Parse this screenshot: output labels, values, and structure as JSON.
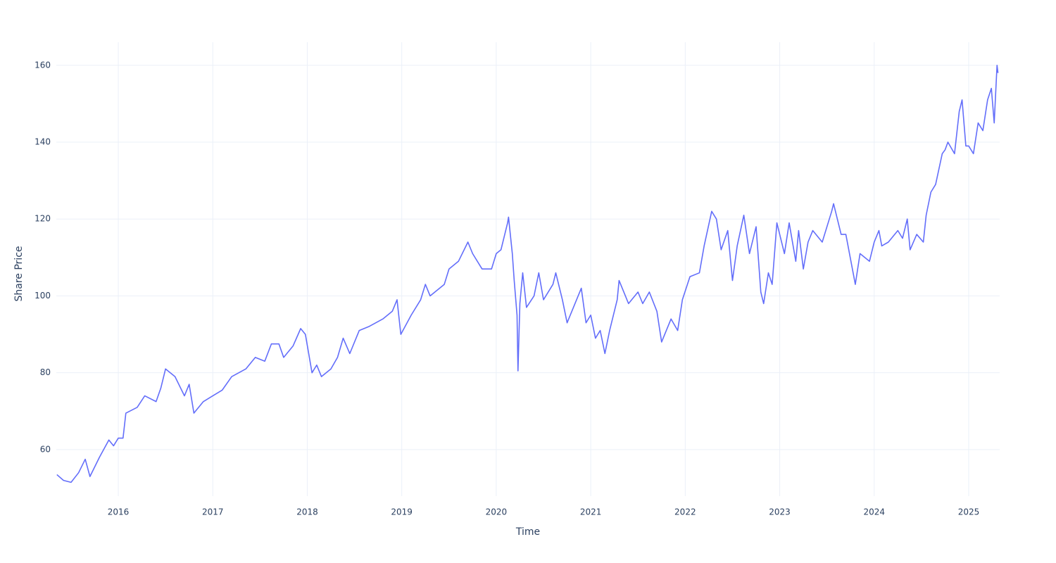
{
  "chart_data": {
    "type": "line",
    "x_label": "Time",
    "y_label": "Share Price",
    "xlim": [
      2015.344,
      2025.328
    ],
    "xticks": [
      2016,
      2017,
      2018,
      2019,
      2020,
      2021,
      2022,
      2023,
      2024,
      2025
    ],
    "ylim": [
      47.9,
      166.0
    ],
    "yticks": [
      60,
      80,
      100,
      120,
      140,
      160
    ],
    "grid": true,
    "series": [
      {
        "color": "#636efa",
        "x": [
          2015.35,
          2015.42,
          2015.5,
          2015.58,
          2015.65,
          2015.7,
          2015.8,
          2015.9,
          2015.95,
          2016.0,
          2016.05,
          2016.08,
          2016.2,
          2016.28,
          2016.4,
          2016.45,
          2016.5,
          2016.6,
          2016.7,
          2016.75,
          2016.8,
          2016.9,
          2017.0,
          2017.1,
          2017.2,
          2017.35,
          2017.45,
          2017.55,
          2017.62,
          2017.7,
          2017.75,
          2017.85,
          2017.93,
          2017.98,
          2018.05,
          2018.1,
          2018.15,
          2018.25,
          2018.32,
          2018.38,
          2018.45,
          2018.55,
          2018.65,
          2018.8,
          2018.9,
          2018.95,
          2018.99,
          2019.1,
          2019.2,
          2019.25,
          2019.3,
          2019.45,
          2019.5,
          2019.6,
          2019.7,
          2019.75,
          2019.85,
          2019.95,
          2020.0,
          2020.05,
          2020.12,
          2020.13,
          2020.17,
          2020.19,
          2020.22,
          2020.23,
          2020.25,
          2020.28,
          2020.32,
          2020.4,
          2020.45,
          2020.5,
          2020.6,
          2020.63,
          2020.7,
          2020.75,
          2020.8,
          2020.9,
          2020.95,
          2021.0,
          2021.05,
          2021.1,
          2021.15,
          2021.2,
          2021.28,
          2021.3,
          2021.4,
          2021.5,
          2021.55,
          2021.62,
          2021.7,
          2021.75,
          2021.85,
          2021.92,
          2021.97,
          2022.05,
          2022.15,
          2022.2,
          2022.28,
          2022.33,
          2022.38,
          2022.45,
          2022.5,
          2022.55,
          2022.62,
          2022.68,
          2022.75,
          2022.8,
          2022.83,
          2022.88,
          2022.92,
          2022.97,
          2023.05,
          2023.1,
          2023.17,
          2023.2,
          2023.25,
          2023.3,
          2023.35,
          2023.45,
          2023.55,
          2023.57,
          2023.65,
          2023.7,
          2023.8,
          2023.85,
          2023.95,
          2024.0,
          2024.05,
          2024.08,
          2024.15,
          2024.25,
          2024.3,
          2024.35,
          2024.38,
          2024.45,
          2024.52,
          2024.55,
          2024.6,
          2024.65,
          2024.72,
          2024.75,
          2024.78,
          2024.85,
          2024.9,
          2024.93,
          2024.97,
          2025.0,
          2025.05,
          2025.1,
          2025.15,
          2025.2,
          2025.24,
          2025.27,
          2025.3,
          2025.31
        ],
        "values": [
          53.5,
          52,
          51.5,
          54,
          57.5,
          53,
          58,
          62.5,
          61,
          63,
          63,
          69.5,
          71,
          74,
          72.5,
          76,
          81,
          79,
          74,
          77,
          69.5,
          72.5,
          74,
          75.5,
          79,
          81,
          84,
          83,
          87.5,
          87.5,
          84,
          87,
          91.5,
          90,
          80,
          82,
          79,
          81,
          84,
          89,
          85,
          91,
          92,
          94,
          96,
          99,
          90,
          95,
          99,
          103,
          100,
          103,
          107,
          109,
          114,
          111,
          107,
          107,
          111,
          112,
          119,
          120.5,
          111,
          104,
          95,
          80.5,
          98,
          106,
          97,
          100,
          106,
          99,
          103,
          106,
          99,
          93,
          96,
          102,
          93,
          95,
          89,
          91,
          85,
          91,
          99,
          104,
          98,
          101,
          98,
          101,
          96,
          88,
          94,
          91,
          99,
          105,
          106,
          113,
          122,
          120,
          112,
          117,
          104,
          113,
          121,
          111,
          118,
          101,
          98,
          106,
          103,
          119,
          111,
          119,
          109,
          117,
          107,
          114,
          117,
          114,
          122,
          124,
          116,
          116,
          103,
          111,
          109,
          114,
          117,
          113,
          114,
          117,
          115,
          120,
          112,
          116,
          114,
          121,
          127,
          129,
          137,
          138,
          140,
          137,
          148,
          151,
          139,
          139,
          137,
          145,
          143,
          151,
          154,
          145,
          160,
          158
        ]
      }
    ]
  }
}
